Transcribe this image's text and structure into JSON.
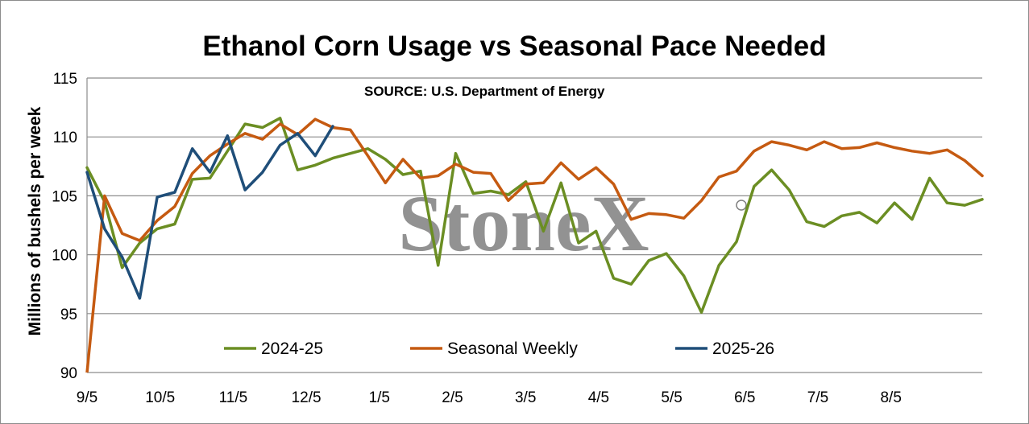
{
  "chart_data": {
    "type": "line",
    "title": "Ethanol Corn Usage vs Seasonal Pace Needed",
    "subtitle": "SOURCE: U.S. Department of Energy",
    "ylabel": "Millions of bushels per week",
    "xlabel": "",
    "ylim": [
      90,
      115
    ],
    "yticks": [
      90,
      95,
      100,
      105,
      110,
      115
    ],
    "xticks": [
      "9/5",
      "10/5",
      "11/5",
      "12/5",
      "1/5",
      "2/5",
      "3/5",
      "4/5",
      "5/5",
      "6/5",
      "7/5",
      "8/5"
    ],
    "x_weeks": 52,
    "grid": "horizontal",
    "legend_position": "bottom",
    "watermark": "StoneX",
    "series": [
      {
        "name": "2024-25",
        "color": "#6b8e23",
        "values": [
          107.4,
          104.5,
          98.9,
          101.0,
          102.2,
          102.6,
          106.4,
          106.5,
          108.8,
          111.1,
          110.8,
          111.6,
          107.2,
          107.6,
          108.2,
          108.6,
          109.0,
          108.1,
          106.8,
          107.1,
          99.1,
          108.6,
          105.2,
          105.4,
          105.1,
          106.2,
          102.0,
          106.1,
          101.0,
          102.0,
          98.0,
          97.5,
          99.5,
          100.1,
          98.2,
          95.1,
          99.1,
          101.1,
          105.8,
          107.2,
          105.5,
          102.8,
          102.4,
          103.3,
          103.6,
          102.7,
          104.4,
          103.0,
          106.5,
          104.4,
          104.2,
          104.7
        ]
      },
      {
        "name": "Seasonal Weekly",
        "color": "#c55a11",
        "values": [
          89.0,
          105.0,
          101.8,
          101.2,
          102.9,
          104.1,
          106.9,
          108.4,
          109.4,
          110.3,
          109.8,
          111.1,
          110.2,
          111.5,
          110.8,
          110.6,
          108.4,
          106.1,
          108.1,
          106.5,
          106.7,
          107.7,
          107.0,
          106.9,
          104.6,
          106.0,
          106.1,
          107.8,
          106.4,
          107.4,
          106.0,
          103.0,
          103.5,
          103.4,
          103.1,
          104.6,
          106.6,
          107.1,
          108.8,
          109.6,
          109.3,
          108.9,
          109.6,
          109.0,
          109.1,
          109.5,
          109.1,
          108.8,
          108.6,
          108.9,
          108.0,
          106.7
        ]
      },
      {
        "name": "2025-26",
        "color": "#1f4e79",
        "values": [
          107.0,
          102.2,
          99.8,
          96.3,
          104.9,
          105.3,
          109.0,
          107.0,
          110.1,
          105.5,
          107.0,
          109.3,
          110.3,
          108.4,
          110.9
        ]
      }
    ]
  }
}
